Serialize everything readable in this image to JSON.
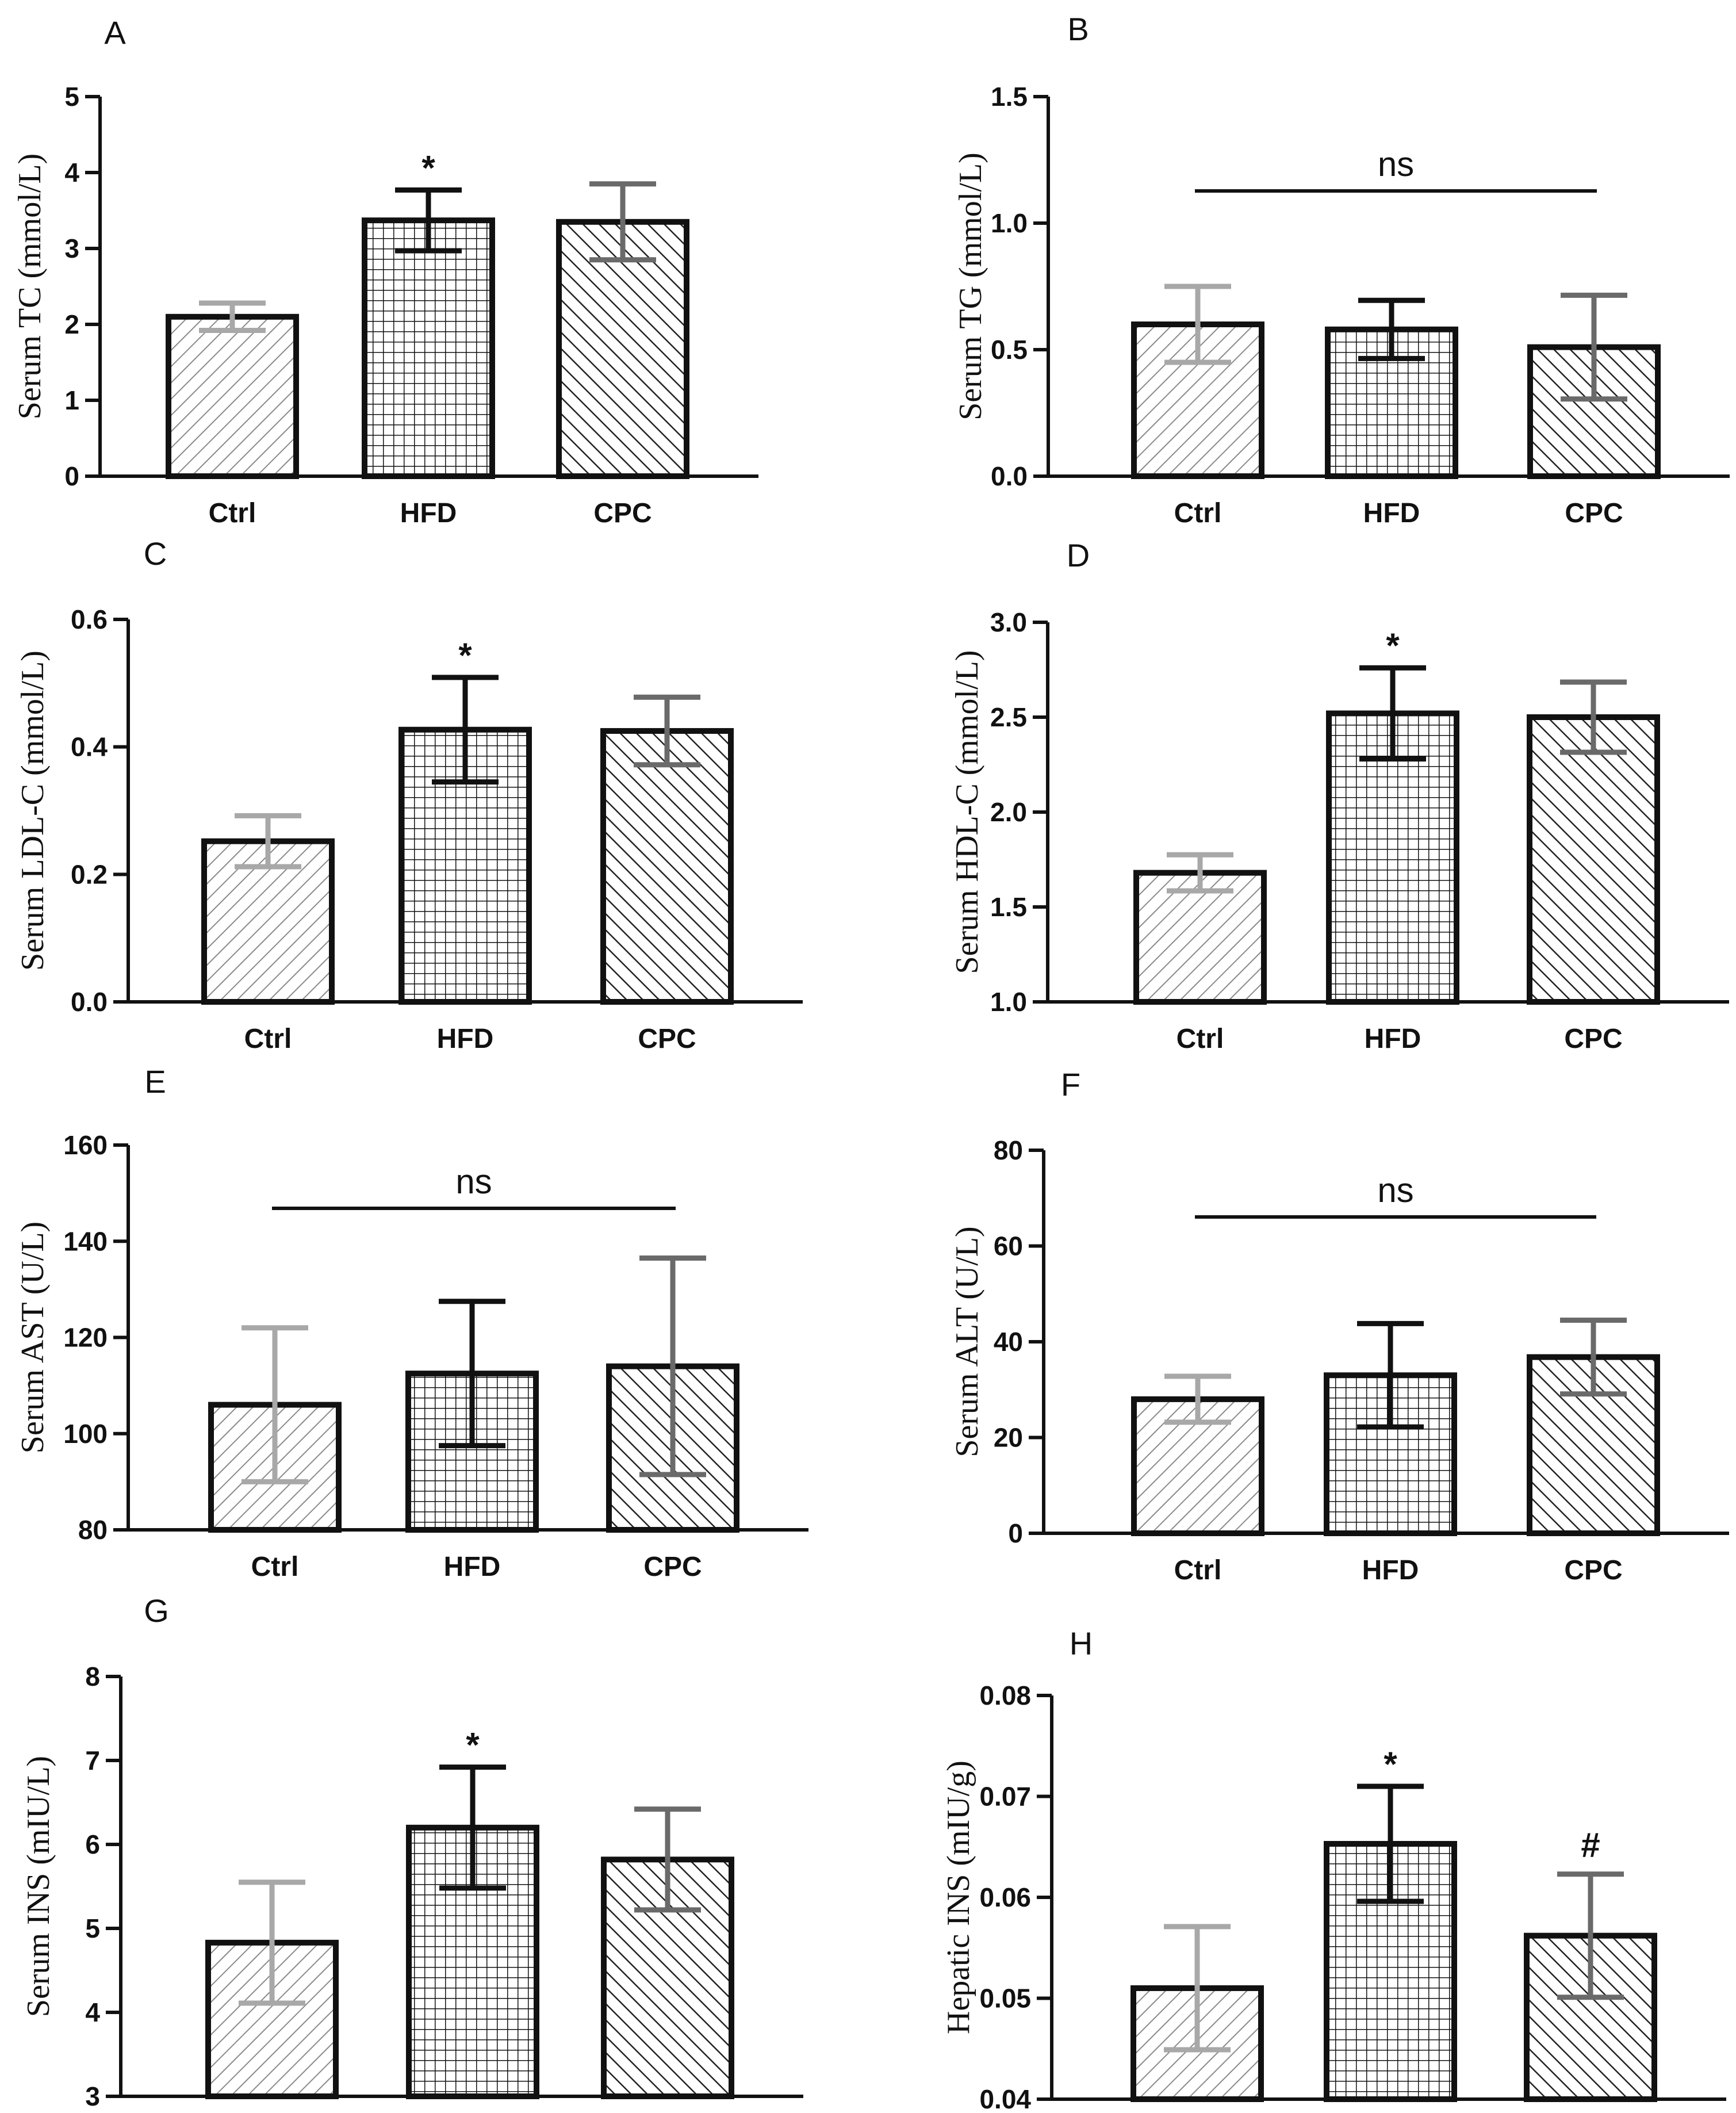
{
  "colors": {
    "ctrl_error": "#a8a8a8",
    "hfd_error": "#111111",
    "cpc_error": "#6a6a6a",
    "bar_stroke": "#111111"
  },
  "chart_data": [
    {
      "type": "bar",
      "panel": "A",
      "ylabel": "Serum TC (mmol/L)",
      "categories": [
        "Ctrl",
        "HFD",
        "CPC"
      ],
      "values": [
        2.1,
        3.37,
        3.35
      ],
      "errors": [
        0.18,
        0.4,
        0.5
      ],
      "ylim": [
        0,
        5
      ],
      "yticks": [
        "0",
        "1",
        "2",
        "3",
        "4",
        "5"
      ],
      "annotations": [
        {
          "text": "*",
          "category": "HFD"
        }
      ]
    },
    {
      "type": "bar",
      "panel": "B",
      "ylabel": "Serum TG (mmol/L)",
      "categories": [
        "Ctrl",
        "HFD",
        "CPC"
      ],
      "values": [
        0.6,
        0.58,
        0.51
      ],
      "errors": [
        0.15,
        0.115,
        0.205
      ],
      "ylim": [
        0,
        1.5
      ],
      "yticks": [
        "0.0",
        "0.5",
        "1.0",
        "1.5"
      ],
      "annotations": [
        {
          "text": "ns",
          "span": true
        }
      ]
    },
    {
      "type": "bar",
      "panel": "C",
      "ylabel": "Serum LDL-C (mmol/L)",
      "categories": [
        "Ctrl",
        "HFD",
        "CPC"
      ],
      "values": [
        0.252,
        0.427,
        0.425
      ],
      "errors": [
        0.04,
        0.082,
        0.053
      ],
      "ylim": [
        0,
        0.6
      ],
      "yticks": [
        "0.0",
        "0.2",
        "0.4",
        "0.6"
      ],
      "annotations": [
        {
          "text": "*",
          "category": "HFD"
        }
      ]
    },
    {
      "type": "bar",
      "panel": "D",
      "ylabel": "Serum HDL-C (mmol/L)",
      "categories": [
        "Ctrl",
        "HFD",
        "CPC"
      ],
      "values": [
        1.68,
        2.52,
        2.5
      ],
      "errors": [
        0.095,
        0.24,
        0.185
      ],
      "ylim": [
        1.0,
        3.0
      ],
      "yticks": [
        "1.0",
        "1.5",
        "2.0",
        "2.5",
        "3.0"
      ],
      "annotations": [
        {
          "text": "*",
          "category": "HFD"
        }
      ]
    },
    {
      "type": "bar",
      "panel": "E",
      "ylabel": "Serum AST (U/L)",
      "categories": [
        "Ctrl",
        "HFD",
        "CPC"
      ],
      "values": [
        106,
        112.5,
        114
      ],
      "errors": [
        16,
        15,
        22.5
      ],
      "ylim": [
        80,
        160
      ],
      "yticks": [
        "80",
        "100",
        "120",
        "140",
        "160"
      ],
      "annotations": [
        {
          "text": "ns",
          "span": true
        }
      ]
    },
    {
      "type": "bar",
      "panel": "F",
      "ylabel": "Serum ALT (U/L)",
      "categories": [
        "Ctrl",
        "HFD",
        "CPC"
      ],
      "values": [
        28,
        33,
        36.8
      ],
      "errors": [
        4.8,
        10.8,
        7.7
      ],
      "ylim": [
        0,
        80
      ],
      "yticks": [
        "0",
        "20",
        "40",
        "60",
        "80"
      ],
      "annotations": [
        {
          "text": "ns",
          "span": true
        }
      ]
    },
    {
      "type": "bar",
      "panel": "G",
      "ylabel": "Serum INS (mIU/L)",
      "categories": [
        "Ctrl",
        "HFD",
        "CPC"
      ],
      "values": [
        4.83,
        6.2,
        5.82
      ],
      "errors": [
        0.72,
        0.72,
        0.6
      ],
      "ylim": [
        3,
        8
      ],
      "yticks": [
        "3",
        "4",
        "5",
        "6",
        "7",
        "8"
      ],
      "annotations": [
        {
          "text": "*",
          "category": "HFD"
        }
      ]
    },
    {
      "type": "bar",
      "panel": "H",
      "ylabel": "Hepatic INS (mIU/g)",
      "categories": [
        "Ctrl",
        "HFD",
        "CPC"
      ],
      "values": [
        0.051,
        0.0653,
        0.0562
      ],
      "errors": [
        0.0061,
        0.0057,
        0.0061
      ],
      "ylim": [
        0.04,
        0.08
      ],
      "yticks": [
        "0.04",
        "0.05",
        "0.06",
        "0.07",
        "0.08"
      ],
      "annotations": [
        {
          "text": "*",
          "category": "HFD"
        },
        {
          "text": "#",
          "category": "CPC"
        }
      ]
    }
  ]
}
